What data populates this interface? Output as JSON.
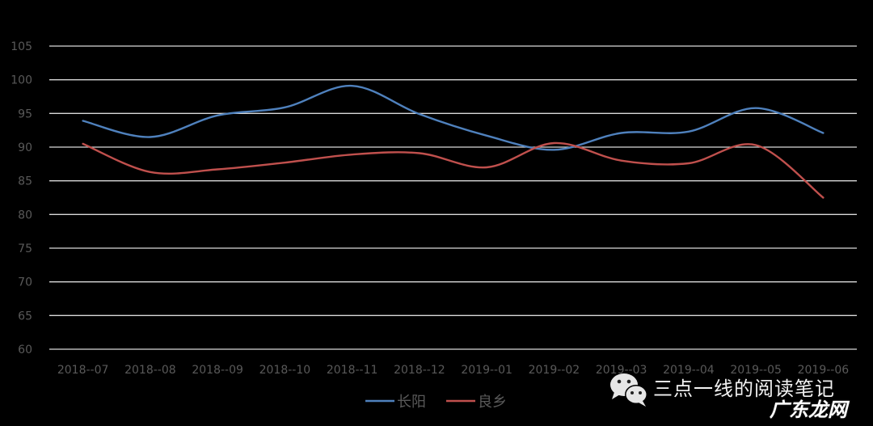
{
  "chart_data": {
    "type": "line",
    "title": "",
    "xlabel": "",
    "ylabel": "",
    "categories": [
      "2018--07",
      "2018--08",
      "2018--09",
      "2018--10",
      "2018--11",
      "2018--12",
      "2019--01",
      "2019--02",
      "2019--03",
      "2019--04",
      "2019--05",
      "2019--06"
    ],
    "series": [
      {
        "name": "长阳",
        "color": "#4F81BD",
        "values": [
          93.9,
          91.5,
          94.7,
          95.9,
          99.1,
          94.9,
          91.7,
          89.6,
          92.1,
          92.3,
          95.8,
          92.1
        ]
      },
      {
        "name": "良乡",
        "color": "#C0504D",
        "values": [
          90.5,
          86.3,
          86.7,
          87.7,
          88.9,
          89.1,
          87.0,
          90.6,
          88.0,
          87.6,
          90.3,
          82.5
        ]
      }
    ],
    "ylim": [
      60,
      105
    ],
    "yticks": [
      60,
      65,
      70,
      75,
      80,
      85,
      90,
      95,
      100,
      105
    ],
    "grid": true,
    "smooth": true,
    "legend_position": "bottom"
  },
  "legend": {
    "items": [
      {
        "label": "长阳",
        "color": "#4F81BD"
      },
      {
        "label": "良乡",
        "color": "#C0504D"
      }
    ]
  },
  "watermark": {
    "line1": "三点一线的阅读笔记",
    "line2": "广东龙网",
    "icon": "wechat-icon"
  },
  "colors": {
    "background": "#000000",
    "gridline": "#D9D9D9",
    "axis_text": "#595959"
  }
}
